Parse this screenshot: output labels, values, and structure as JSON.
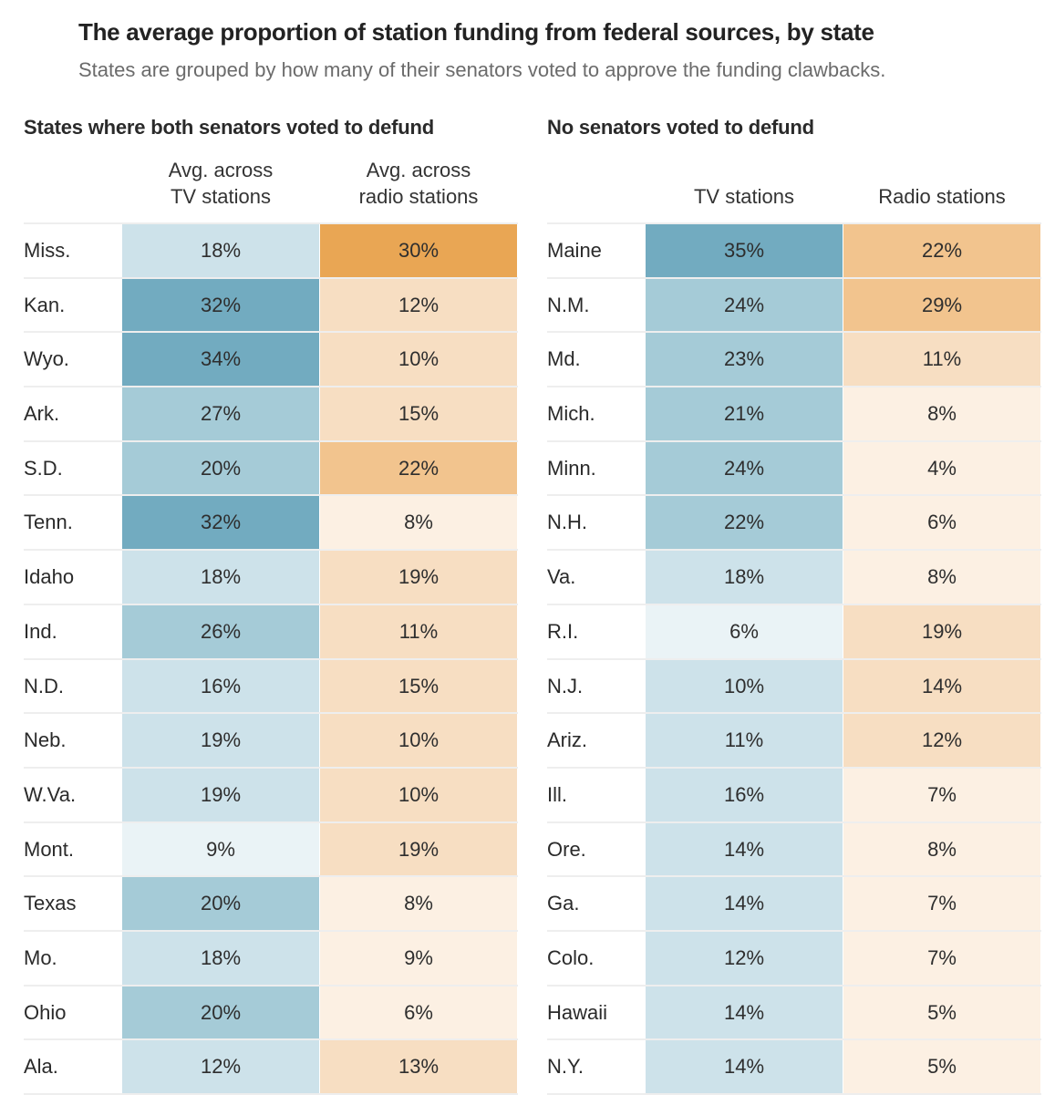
{
  "header": {
    "title": "The average proportion of station funding from federal sources, by state",
    "subtitle": "States are grouped by how many of their senators voted to approve the funding clawbacks."
  },
  "color_scales": {
    "tv": [
      "#eaf3f6",
      "#cde2ea",
      "#a5cbd7",
      "#72abc0"
    ],
    "radio": [
      "#fcf0e3",
      "#f7dec2",
      "#f2c48e",
      "#e9a654"
    ]
  },
  "chart_data": {
    "type": "heatmap",
    "title": "The average proportion of station funding from federal sources, by state",
    "subtitle": "States are grouped by how many of their senators voted to approve the funding clawbacks.",
    "unit": "%",
    "panels": [
      {
        "title": "States where both senators voted to defund",
        "columns": [
          "Avg. across TV stations",
          "Avg. across radio stations"
        ],
        "column_lines": [
          [
            "Avg. across",
            "TV stations"
          ],
          [
            "Avg. across",
            "radio stations"
          ]
        ],
        "rows": [
          {
            "state": "Miss.",
            "tv": 18,
            "radio": 30
          },
          {
            "state": "Kan.",
            "tv": 32,
            "radio": 12
          },
          {
            "state": "Wyo.",
            "tv": 34,
            "radio": 10
          },
          {
            "state": "Ark.",
            "tv": 27,
            "radio": 15
          },
          {
            "state": "S.D.",
            "tv": 20,
            "radio": 22
          },
          {
            "state": "Tenn.",
            "tv": 32,
            "radio": 8
          },
          {
            "state": "Idaho",
            "tv": 18,
            "radio": 19
          },
          {
            "state": "Ind.",
            "tv": 26,
            "radio": 11
          },
          {
            "state": "N.D.",
            "tv": 16,
            "radio": 15
          },
          {
            "state": "Neb.",
            "tv": 19,
            "radio": 10
          },
          {
            "state": "W.Va.",
            "tv": 19,
            "radio": 10
          },
          {
            "state": "Mont.",
            "tv": 9,
            "radio": 19
          },
          {
            "state": "Texas",
            "tv": 20,
            "radio": 8
          },
          {
            "state": "Mo.",
            "tv": 18,
            "radio": 9
          },
          {
            "state": "Ohio",
            "tv": 20,
            "radio": 6
          },
          {
            "state": "Ala.",
            "tv": 12,
            "radio": 13
          }
        ]
      },
      {
        "title": "No senators voted to defund",
        "columns": [
          "TV stations",
          "Radio stations"
        ],
        "column_lines": [
          [
            "TV stations"
          ],
          [
            "Radio stations"
          ]
        ],
        "rows": [
          {
            "state": "Maine",
            "tv": 35,
            "radio": 22
          },
          {
            "state": "N.M.",
            "tv": 24,
            "radio": 29
          },
          {
            "state": "Md.",
            "tv": 23,
            "radio": 11
          },
          {
            "state": "Mich.",
            "tv": 21,
            "radio": 8
          },
          {
            "state": "Minn.",
            "tv": 24,
            "radio": 4
          },
          {
            "state": "N.H.",
            "tv": 22,
            "radio": 6
          },
          {
            "state": "Va.",
            "tv": 18,
            "radio": 8
          },
          {
            "state": "R.I.",
            "tv": 6,
            "radio": 19
          },
          {
            "state": "N.J.",
            "tv": 10,
            "radio": 14
          },
          {
            "state": "Ariz.",
            "tv": 11,
            "radio": 12
          },
          {
            "state": "Ill.",
            "tv": 16,
            "radio": 7
          },
          {
            "state": "Ore.",
            "tv": 14,
            "radio": 8
          },
          {
            "state": "Ga.",
            "tv": 14,
            "radio": 7
          },
          {
            "state": "Colo.",
            "tv": 12,
            "radio": 7
          },
          {
            "state": "Hawaii",
            "tv": 14,
            "radio": 5
          },
          {
            "state": "N.Y.",
            "tv": 14,
            "radio": 5
          }
        ]
      }
    ]
  }
}
